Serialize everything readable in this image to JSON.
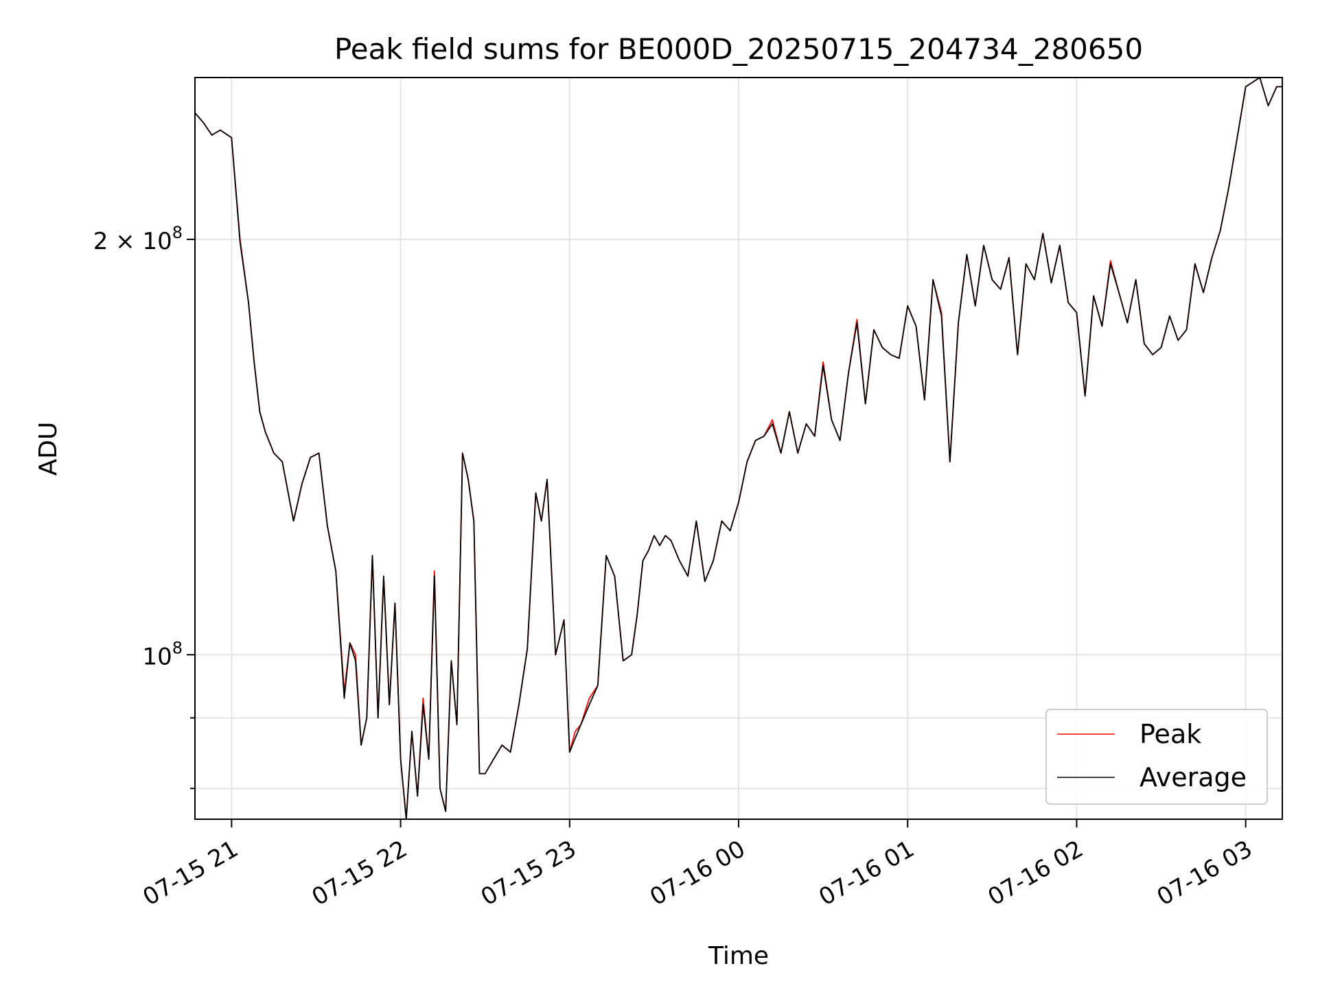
{
  "chart_data": {
    "type": "line",
    "title": "Peak field sums for BE000D_20250715_204734_280650",
    "xlabel": "Time",
    "ylabel": "ADU",
    "y_scale": "log",
    "xlim": [
      "2025-07-15 20:47",
      "2025-07-16 03:13"
    ],
    "ylim": [
      76000000,
      262000000
    ],
    "x_ticks": [
      "07-15 21",
      "07-15 22",
      "07-15 23",
      "07-16 00",
      "07-16 01",
      "07-16 02",
      "07-16 03"
    ],
    "y_major_ticks": [
      {
        "value": 100000000,
        "base": "10",
        "exp": "8"
      },
      {
        "value": 200000000,
        "base": "2 × 10",
        "exp": "8"
      }
    ],
    "y_minor_ticks": [
      70000000,
      80000000,
      90000000
    ],
    "grid": true,
    "legend": {
      "position": "lower-right",
      "entries": [
        "Peak",
        "Average"
      ]
    },
    "colors": {
      "Peak": "#ff0000",
      "Average": "#000000"
    },
    "x": [
      "2025-07-15 20:47",
      "2025-07-15 20:50",
      "2025-07-15 20:53",
      "2025-07-15 20:56",
      "2025-07-15 21:00",
      "2025-07-15 21:03",
      "2025-07-15 21:06",
      "2025-07-15 21:08",
      "2025-07-15 21:10",
      "2025-07-15 21:12",
      "2025-07-15 21:15",
      "2025-07-15 21:18",
      "2025-07-15 21:22",
      "2025-07-15 21:25",
      "2025-07-15 21:28",
      "2025-07-15 21:31",
      "2025-07-15 21:34",
      "2025-07-15 21:37",
      "2025-07-15 21:40",
      "2025-07-15 21:42",
      "2025-07-15 21:44",
      "2025-07-15 21:46",
      "2025-07-15 21:48",
      "2025-07-15 21:50",
      "2025-07-15 21:52",
      "2025-07-15 21:54",
      "2025-07-15 21:56",
      "2025-07-15 21:58",
      "2025-07-15 22:00",
      "2025-07-15 22:02",
      "2025-07-15 22:04",
      "2025-07-15 22:06",
      "2025-07-15 22:08",
      "2025-07-15 22:10",
      "2025-07-15 22:12",
      "2025-07-15 22:14",
      "2025-07-15 22:16",
      "2025-07-15 22:18",
      "2025-07-15 22:20",
      "2025-07-15 22:22",
      "2025-07-15 22:24",
      "2025-07-15 22:26",
      "2025-07-15 22:28",
      "2025-07-15 22:30",
      "2025-07-15 22:33",
      "2025-07-15 22:36",
      "2025-07-15 22:39",
      "2025-07-15 22:42",
      "2025-07-15 22:45",
      "2025-07-15 22:48",
      "2025-07-15 22:50",
      "2025-07-15 22:52",
      "2025-07-15 22:55",
      "2025-07-15 22:58",
      "2025-07-15 23:00",
      "2025-07-15 23:02",
      "2025-07-15 23:04",
      "2025-07-15 23:07",
      "2025-07-15 23:10",
      "2025-07-15 23:13",
      "2025-07-15 23:16",
      "2025-07-15 23:19",
      "2025-07-15 23:22",
      "2025-07-15 23:24",
      "2025-07-15 23:26",
      "2025-07-15 23:28",
      "2025-07-15 23:30",
      "2025-07-15 23:32",
      "2025-07-15 23:34",
      "2025-07-15 23:36",
      "2025-07-15 23:39",
      "2025-07-15 23:42",
      "2025-07-15 23:45",
      "2025-07-15 23:48",
      "2025-07-15 23:51",
      "2025-07-15 23:54",
      "2025-07-15 23:57",
      "2025-07-16 00:00",
      "2025-07-16 00:03",
      "2025-07-16 00:06",
      "2025-07-16 00:09",
      "2025-07-16 00:12",
      "2025-07-16 00:15",
      "2025-07-16 00:18",
      "2025-07-16 00:21",
      "2025-07-16 00:24",
      "2025-07-16 00:27",
      "2025-07-16 00:30",
      "2025-07-16 00:33",
      "2025-07-16 00:36",
      "2025-07-16 00:39",
      "2025-07-16 00:42",
      "2025-07-16 00:45",
      "2025-07-16 00:48",
      "2025-07-16 00:51",
      "2025-07-16 00:54",
      "2025-07-16 00:57",
      "2025-07-16 01:00",
      "2025-07-16 01:03",
      "2025-07-16 01:06",
      "2025-07-16 01:09",
      "2025-07-16 01:12",
      "2025-07-16 01:15",
      "2025-07-16 01:18",
      "2025-07-16 01:21",
      "2025-07-16 01:24",
      "2025-07-16 01:27",
      "2025-07-16 01:30",
      "2025-07-16 01:33",
      "2025-07-16 01:36",
      "2025-07-16 01:39",
      "2025-07-16 01:42",
      "2025-07-16 01:45",
      "2025-07-16 01:48",
      "2025-07-16 01:51",
      "2025-07-16 01:54",
      "2025-07-16 01:57",
      "2025-07-16 02:00",
      "2025-07-16 02:03",
      "2025-07-16 02:06",
      "2025-07-16 02:09",
      "2025-07-16 02:12",
      "2025-07-16 02:15",
      "2025-07-16 02:18",
      "2025-07-16 02:21",
      "2025-07-16 02:24",
      "2025-07-16 02:27",
      "2025-07-16 02:30",
      "2025-07-16 02:33",
      "2025-07-16 02:36",
      "2025-07-16 02:39",
      "2025-07-16 02:42",
      "2025-07-16 02:45",
      "2025-07-16 02:48",
      "2025-07-16 02:51",
      "2025-07-16 02:54",
      "2025-07-16 02:57",
      "2025-07-16 03:00",
      "2025-07-16 03:05",
      "2025-07-16 03:08",
      "2025-07-16 03:11",
      "2025-07-16 03:13"
    ],
    "series": [
      {
        "name": "Peak",
        "values": [
          247000000,
          243000000,
          238000000,
          240000000,
          237000000,
          200000000,
          180000000,
          163000000,
          150000000,
          145000000,
          140000000,
          138000000,
          125000000,
          133000000,
          139000000,
          140000000,
          124000000,
          115000000,
          94000000,
          102000000,
          100000000,
          86000000,
          90000000,
          118000000,
          90000000,
          114000000,
          92000000,
          109000000,
          84000000,
          76000000,
          88000000,
          79000000,
          93000000,
          84000000,
          115000000,
          80000000,
          77000000,
          99000000,
          89000000,
          140000000,
          134000000,
          125000000,
          82000000,
          82000000,
          84000000,
          86000000,
          85000000,
          92000000,
          101000000,
          131000000,
          125000000,
          134000000,
          100000000,
          106000000,
          85000000,
          88000000,
          89000000,
          93000000,
          95000000,
          118000000,
          114000000,
          99000000,
          100000000,
          107000000,
          117000000,
          119000000,
          122000000,
          120000000,
          122000000,
          121000000,
          117000000,
          114000000,
          125000000,
          113000000,
          117000000,
          125000000,
          123000000,
          129000000,
          138000000,
          143000000,
          144000000,
          148000000,
          140000000,
          150000000,
          140000000,
          147000000,
          144000000,
          163000000,
          148000000,
          143000000,
          160000000,
          175000000,
          152000000,
          172000000,
          167000000,
          165000000,
          164000000,
          179000000,
          173000000,
          153000000,
          187000000,
          177000000,
          138000000,
          174000000,
          195000000,
          179000000,
          198000000,
          187000000,
          184000000,
          194000000,
          165000000,
          192000000,
          187000000,
          202000000,
          186000000,
          198000000,
          180000000,
          177000000,
          154000000,
          182000000,
          173000000,
          193000000,
          183000000,
          174000000,
          187000000,
          168000000,
          165000000,
          167000000,
          176000000,
          169000000,
          172000000,
          192000000,
          183000000,
          194000000,
          203000000,
          218000000,
          237000000,
          258000000,
          262000000,
          250000000,
          258000000,
          258000000
        ]
      },
      {
        "name": "Average",
        "values": [
          247000000,
          243000000,
          238000000,
          240000000,
          237000000,
          199000000,
          180000000,
          163000000,
          150000000,
          145000000,
          140000000,
          138000000,
          125000000,
          133000000,
          139000000,
          140000000,
          124000000,
          115000000,
          93000000,
          102000000,
          99000000,
          86000000,
          90000000,
          118000000,
          90000000,
          114000000,
          92000000,
          109000000,
          84000000,
          76000000,
          88000000,
          79000000,
          92000000,
          84000000,
          114000000,
          80000000,
          77000000,
          99000000,
          89000000,
          140000000,
          134000000,
          125000000,
          82000000,
          82000000,
          84000000,
          86000000,
          85000000,
          92000000,
          101000000,
          131000000,
          125000000,
          134000000,
          100000000,
          106000000,
          85000000,
          87000000,
          89000000,
          92000000,
          95000000,
          118000000,
          114000000,
          99000000,
          100000000,
          107000000,
          117000000,
          119000000,
          122000000,
          120000000,
          122000000,
          121000000,
          117000000,
          114000000,
          125000000,
          113000000,
          117000000,
          125000000,
          123000000,
          129000000,
          138000000,
          143000000,
          144000000,
          147000000,
          140000000,
          150000000,
          140000000,
          147000000,
          144000000,
          162000000,
          148000000,
          143000000,
          160000000,
          174000000,
          152000000,
          172000000,
          167000000,
          165000000,
          164000000,
          179000000,
          173000000,
          153000000,
          187000000,
          176000000,
          138000000,
          174000000,
          195000000,
          179000000,
          198000000,
          187000000,
          184000000,
          194000000,
          165000000,
          192000000,
          187000000,
          202000000,
          186000000,
          198000000,
          180000000,
          177000000,
          154000000,
          182000000,
          173000000,
          192000000,
          183000000,
          174000000,
          187000000,
          168000000,
          165000000,
          167000000,
          176000000,
          169000000,
          172000000,
          192000000,
          183000000,
          194000000,
          203000000,
          218000000,
          237000000,
          258000000,
          262000000,
          250000000,
          258000000,
          258000000
        ]
      }
    ]
  }
}
